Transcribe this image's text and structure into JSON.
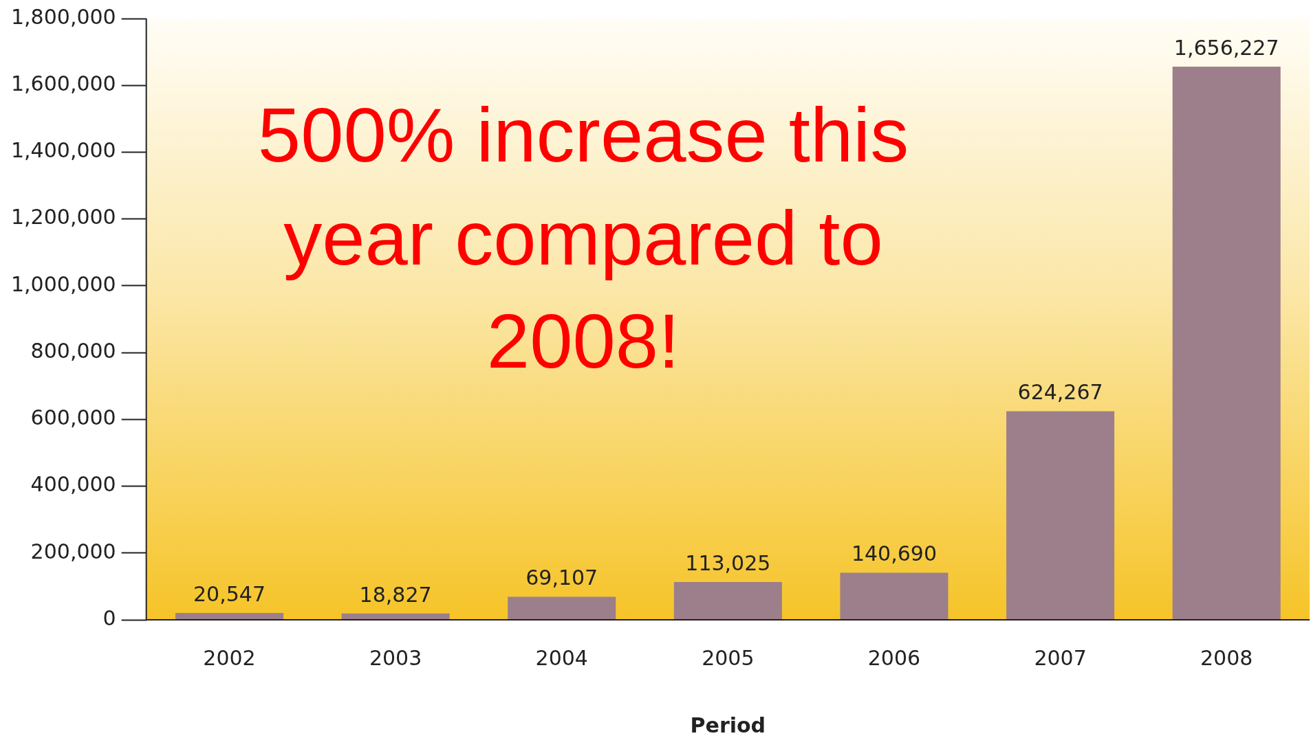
{
  "chart_data": {
    "type": "bar",
    "xlabel": "Period",
    "categories": [
      "2002",
      "2003",
      "2004",
      "2005",
      "2006",
      "2007",
      "2008"
    ],
    "values": [
      20547,
      18827,
      69107,
      113025,
      140690,
      624267,
      1656227
    ],
    "value_labels": [
      "20,547",
      "18,827",
      "69,107",
      "113,025",
      "140,690",
      "624,267",
      "1,656,227"
    ],
    "color": "#9c7f8b",
    "ylim": [
      0,
      1800000
    ],
    "yticks": [
      {
        "value": 0,
        "label": "0"
      },
      {
        "value": 200000,
        "label": "200,000"
      },
      {
        "value": 400000,
        "label": "400,000"
      },
      {
        "value": 600000,
        "label": "600,000"
      },
      {
        "value": 800000,
        "label": "800,000"
      },
      {
        "value": 1000000,
        "label": "1,000,000"
      },
      {
        "value": 1200000,
        "label": "1,200,000"
      },
      {
        "value": 1400000,
        "label": "1,400,000"
      },
      {
        "value": 1600000,
        "label": "1,600,000"
      },
      {
        "value": 1800000,
        "label": "1,800,000"
      }
    ],
    "grid": false,
    "legend": false,
    "annotations": [
      "500% increase this year compared to 2008!"
    ]
  }
}
